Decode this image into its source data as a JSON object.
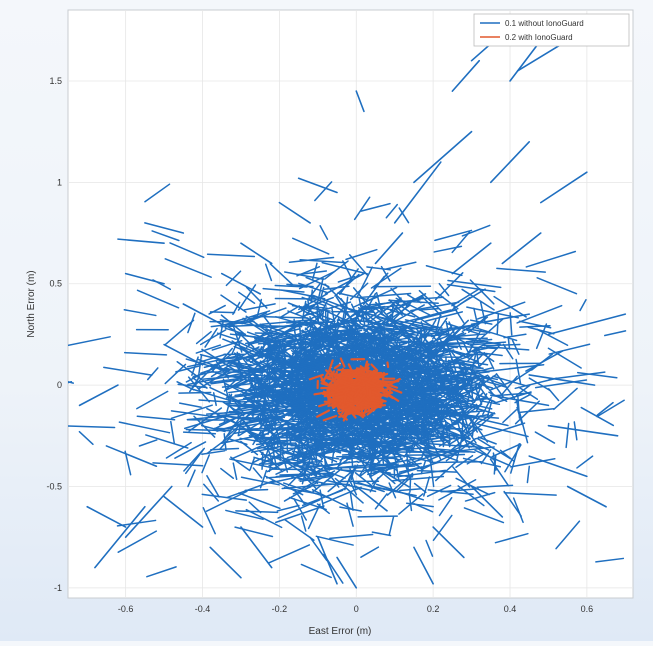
{
  "chart_data": {
    "type": "scatter",
    "title": "",
    "xlabel": "East Error (m)",
    "ylabel": "North Error (m)",
    "xlim": [
      -0.75,
      0.72
    ],
    "ylim": [
      -1.05,
      1.85
    ],
    "xticks": [
      -0.6,
      -0.4,
      -0.2,
      0,
      0.2,
      0.4,
      0.6
    ],
    "xtick_labels": [
      "-0.6",
      "-0.4",
      "-0.2",
      "0",
      "0.2",
      "0.4",
      "0.6"
    ],
    "yticks": [
      -1,
      -0.5,
      0,
      0.5,
      1,
      1.5
    ],
    "ytick_labels": [
      "-1",
      "-0.5",
      "0",
      "0.5",
      "1",
      "1.5"
    ],
    "grid": true,
    "legend_position": "top-right",
    "series": [
      {
        "name": "0.1 without IonoGuard",
        "color": "#1f6fc0",
        "style": "line-segments",
        "spread_east": 0.17,
        "spread_north": 0.28,
        "segments": [
          [
            [
              -0.68,
              -0.9
            ],
            [
              -0.55,
              -0.6
            ]
          ],
          [
            [
              -0.6,
              -0.75
            ],
            [
              -0.48,
              -0.5
            ]
          ],
          [
            [
              -0.72,
              -0.1
            ],
            [
              -0.62,
              0.0
            ]
          ],
          [
            [
              -0.6,
              0.55
            ],
            [
              -0.5,
              0.5
            ]
          ],
          [
            [
              -0.62,
              0.72
            ],
            [
              -0.5,
              0.7
            ]
          ],
          [
            [
              -0.55,
              0.8
            ],
            [
              -0.45,
              0.75
            ]
          ],
          [
            [
              -0.3,
              0.7
            ],
            [
              -0.22,
              0.6
            ]
          ],
          [
            [
              -0.2,
              0.9
            ],
            [
              -0.12,
              0.8
            ]
          ],
          [
            [
              -0.15,
              1.02
            ],
            [
              -0.05,
              0.95
            ]
          ],
          [
            [
              0.0,
              1.45
            ],
            [
              0.02,
              1.35
            ]
          ],
          [
            [
              0.1,
              0.8
            ],
            [
              0.22,
              1.1
            ]
          ],
          [
            [
              0.15,
              1.0
            ],
            [
              0.3,
              1.25
            ]
          ],
          [
            [
              0.25,
              1.45
            ],
            [
              0.32,
              1.6
            ]
          ],
          [
            [
              0.3,
              1.6
            ],
            [
              0.42,
              1.8
            ]
          ],
          [
            [
              0.4,
              1.5
            ],
            [
              0.5,
              1.75
            ]
          ],
          [
            [
              0.42,
              1.55
            ],
            [
              0.55,
              1.7
            ]
          ],
          [
            [
              0.35,
              1.0
            ],
            [
              0.45,
              1.2
            ]
          ],
          [
            [
              0.48,
              0.9
            ],
            [
              0.6,
              1.05
            ]
          ],
          [
            [
              0.5,
              0.25
            ],
            [
              0.7,
              0.35
            ]
          ],
          [
            [
              0.45,
              0.05
            ],
            [
              0.62,
              0.0
            ]
          ],
          [
            [
              0.5,
              -0.2
            ],
            [
              0.68,
              -0.25
            ]
          ],
          [
            [
              0.45,
              -0.35
            ],
            [
              0.6,
              -0.45
            ]
          ],
          [
            [
              0.55,
              -0.5
            ],
            [
              0.65,
              -0.6
            ]
          ],
          [
            [
              0.3,
              -0.5
            ],
            [
              0.38,
              -0.65
            ]
          ],
          [
            [
              0.2,
              -0.7
            ],
            [
              0.28,
              -0.85
            ]
          ],
          [
            [
              0.15,
              -0.8
            ],
            [
              0.2,
              -0.98
            ]
          ],
          [
            [
              -0.1,
              -0.75
            ],
            [
              -0.05,
              -0.98
            ]
          ],
          [
            [
              -0.05,
              -0.85
            ],
            [
              0.0,
              -1.0
            ]
          ],
          [
            [
              -0.3,
              -0.7
            ],
            [
              -0.22,
              -0.9
            ]
          ],
          [
            [
              -0.38,
              -0.8
            ],
            [
              -0.3,
              -0.95
            ]
          ],
          [
            [
              -0.5,
              -0.55
            ],
            [
              -0.4,
              -0.7
            ]
          ],
          [
            [
              -0.7,
              -0.6
            ],
            [
              -0.6,
              -0.7
            ]
          ],
          [
            [
              -0.65,
              -0.3
            ],
            [
              -0.52,
              -0.4
            ]
          ],
          [
            [
              -0.5,
              0.2
            ],
            [
              -0.4,
              0.1
            ]
          ],
          [
            [
              -0.45,
              0.4
            ],
            [
              -0.35,
              0.3
            ]
          ],
          [
            [
              -0.35,
              0.55
            ],
            [
              -0.25,
              0.45
            ]
          ],
          [
            [
              0.25,
              0.55
            ],
            [
              0.35,
              0.7
            ]
          ],
          [
            [
              0.3,
              0.3
            ],
            [
              0.45,
              0.35
            ]
          ],
          [
            [
              0.35,
              -0.05
            ],
            [
              0.5,
              -0.1
            ]
          ],
          [
            [
              0.38,
              0.6
            ],
            [
              0.48,
              0.75
            ]
          ],
          [
            [
              -0.25,
              0.3
            ],
            [
              -0.12,
              0.22
            ]
          ],
          [
            [
              0.05,
              0.6
            ],
            [
              0.12,
              0.75
            ]
          ],
          [
            [
              0.08,
              0.35
            ],
            [
              0.18,
              0.45
            ]
          ],
          [
            [
              -0.08,
              0.45
            ],
            [
              0.02,
              0.55
            ]
          ],
          [
            [
              0.0,
              -0.5
            ],
            [
              0.08,
              -0.62
            ]
          ]
        ]
      },
      {
        "name": "0.2 with IonoGuard",
        "color": "#e2592d",
        "style": "line-segments",
        "spread_east": 0.035,
        "spread_north": 0.05
      }
    ]
  }
}
